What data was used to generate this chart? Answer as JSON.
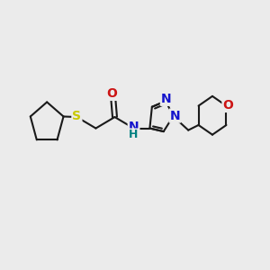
{
  "background_color": "#ebebeb",
  "bond_color": "#1a1a1a",
  "bond_lw": 1.5,
  "S_color": "#c8c800",
  "N_color": "#1414cc",
  "O_color": "#cc1414",
  "NH_color": "#008080",
  "fig_w": 3.0,
  "fig_h": 3.0,
  "dpi": 100,
  "xlim": [
    0,
    12
  ],
  "ylim": [
    0,
    10
  ]
}
